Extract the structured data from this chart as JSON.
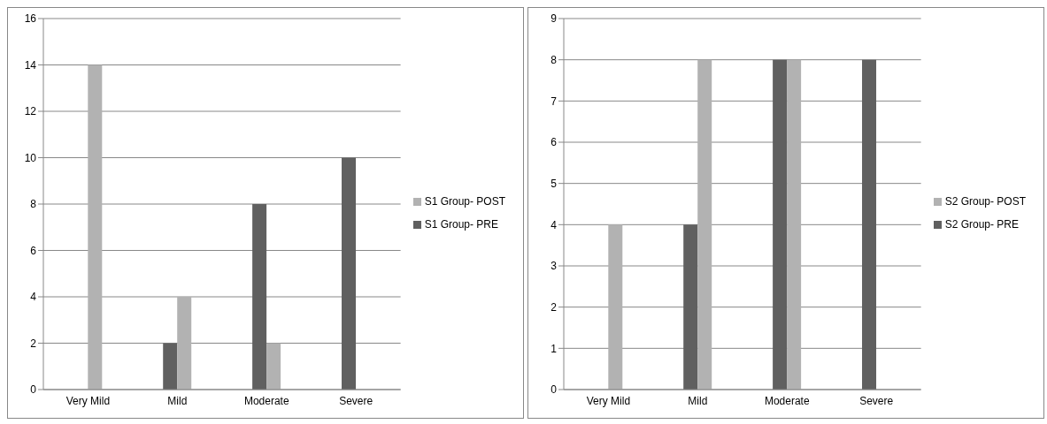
{
  "chart_data": [
    {
      "type": "bar",
      "categories": [
        "Very Mild",
        "Mild",
        "Moderate",
        "Severe"
      ],
      "series": [
        {
          "name": "S1 Group- PRE",
          "color": "#606060",
          "values": [
            0,
            2,
            8,
            10
          ]
        },
        {
          "name": "S1 Group- POST",
          "color": "#b2b2b2",
          "values": [
            14,
            4,
            2,
            0
          ]
        }
      ],
      "ylim": [
        0,
        16
      ],
      "yticks": [
        0,
        2,
        4,
        6,
        8,
        10,
        12,
        14,
        16
      ],
      "grid": "y",
      "legend": "right"
    },
    {
      "type": "bar",
      "categories": [
        "Very Mild",
        "Mild",
        "Moderate",
        "Severe"
      ],
      "series": [
        {
          "name": "S2 Group- PRE",
          "color": "#606060",
          "values": [
            0,
            4,
            8,
            8
          ]
        },
        {
          "name": "S2 Group- POST",
          "color": "#b2b2b2",
          "values": [
            4,
            8,
            8,
            0
          ]
        }
      ],
      "ylim": [
        0,
        9
      ],
      "yticks": [
        0,
        1,
        2,
        3,
        4,
        5,
        6,
        7,
        8,
        9
      ],
      "grid": "y",
      "legend": "right"
    }
  ]
}
